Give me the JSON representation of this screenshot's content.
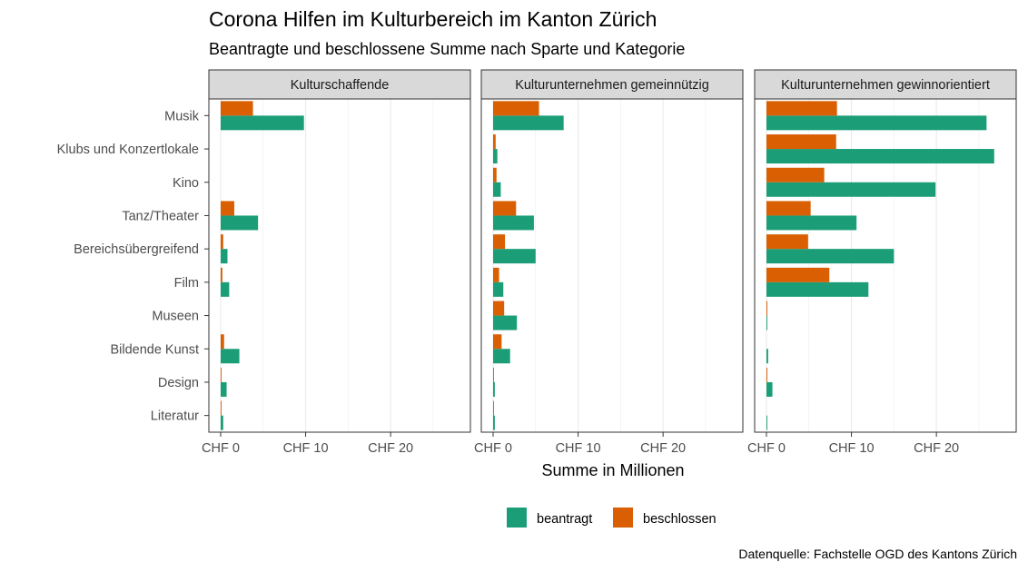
{
  "chart_data": {
    "type": "bar",
    "orientation": "horizontal",
    "title": "Corona Hilfen im Kulturbereich im Kanton Zürich",
    "subtitle": "Beantragte und beschlossene Summe nach Sparte und Kategorie",
    "xlabel": "Summe in Millionen",
    "caption": "Datenquelle: Fachstelle OGD des Kantons Zürich",
    "xlim": [
      0,
      28
    ],
    "xticks": [
      0,
      10,
      20
    ],
    "xtick_labels": [
      "CHF 0",
      "CHF 10",
      "CHF 20"
    ],
    "categories": [
      "Musik",
      "Klubs und Konzertlokale",
      "Kino",
      "Tanz/Theater",
      "Bereichsübergreifend",
      "Film",
      "Museen",
      "Bildende Kunst",
      "Design",
      "Literatur"
    ],
    "legend": {
      "position": "bottom",
      "entries": [
        {
          "name": "beantragt",
          "color": "#1b9e77"
        },
        {
          "name": "beschlossen",
          "color": "#d95f02"
        }
      ]
    },
    "panels": [
      {
        "name": "Kulturschaffende",
        "series": [
          {
            "name": "beantragt",
            "values": [
              9.8,
              0,
              0,
              4.4,
              0.8,
              1.0,
              0,
              2.2,
              0.7,
              0.3
            ]
          },
          {
            "name": "beschlossen",
            "values": [
              3.8,
              0,
              0,
              1.6,
              0.3,
              0.2,
              0,
              0.4,
              0.1,
              0.1
            ]
          }
        ]
      },
      {
        "name": "Kulturunternehmen gemeinnützig",
        "series": [
          {
            "name": "beantragt",
            "values": [
              8.3,
              0.5,
              0.9,
              4.8,
              5.0,
              1.2,
              2.8,
              2.0,
              0.2,
              0.2
            ]
          },
          {
            "name": "beschlossen",
            "values": [
              5.4,
              0.3,
              0.4,
              2.7,
              1.4,
              0.7,
              1.3,
              1.0,
              0.1,
              0.1
            ]
          }
        ]
      },
      {
        "name": "Kulturunternehmen gewinnorientiert",
        "series": [
          {
            "name": "beantragt",
            "values": [
              25.9,
              26.8,
              19.9,
              10.6,
              15.0,
              12.0,
              0.1,
              0.2,
              0.7,
              0.1
            ]
          },
          {
            "name": "beschlossen",
            "values": [
              8.3,
              8.2,
              6.8,
              5.2,
              4.9,
              7.4,
              0.1,
              0,
              0.1,
              0
            ]
          }
        ]
      }
    ]
  }
}
